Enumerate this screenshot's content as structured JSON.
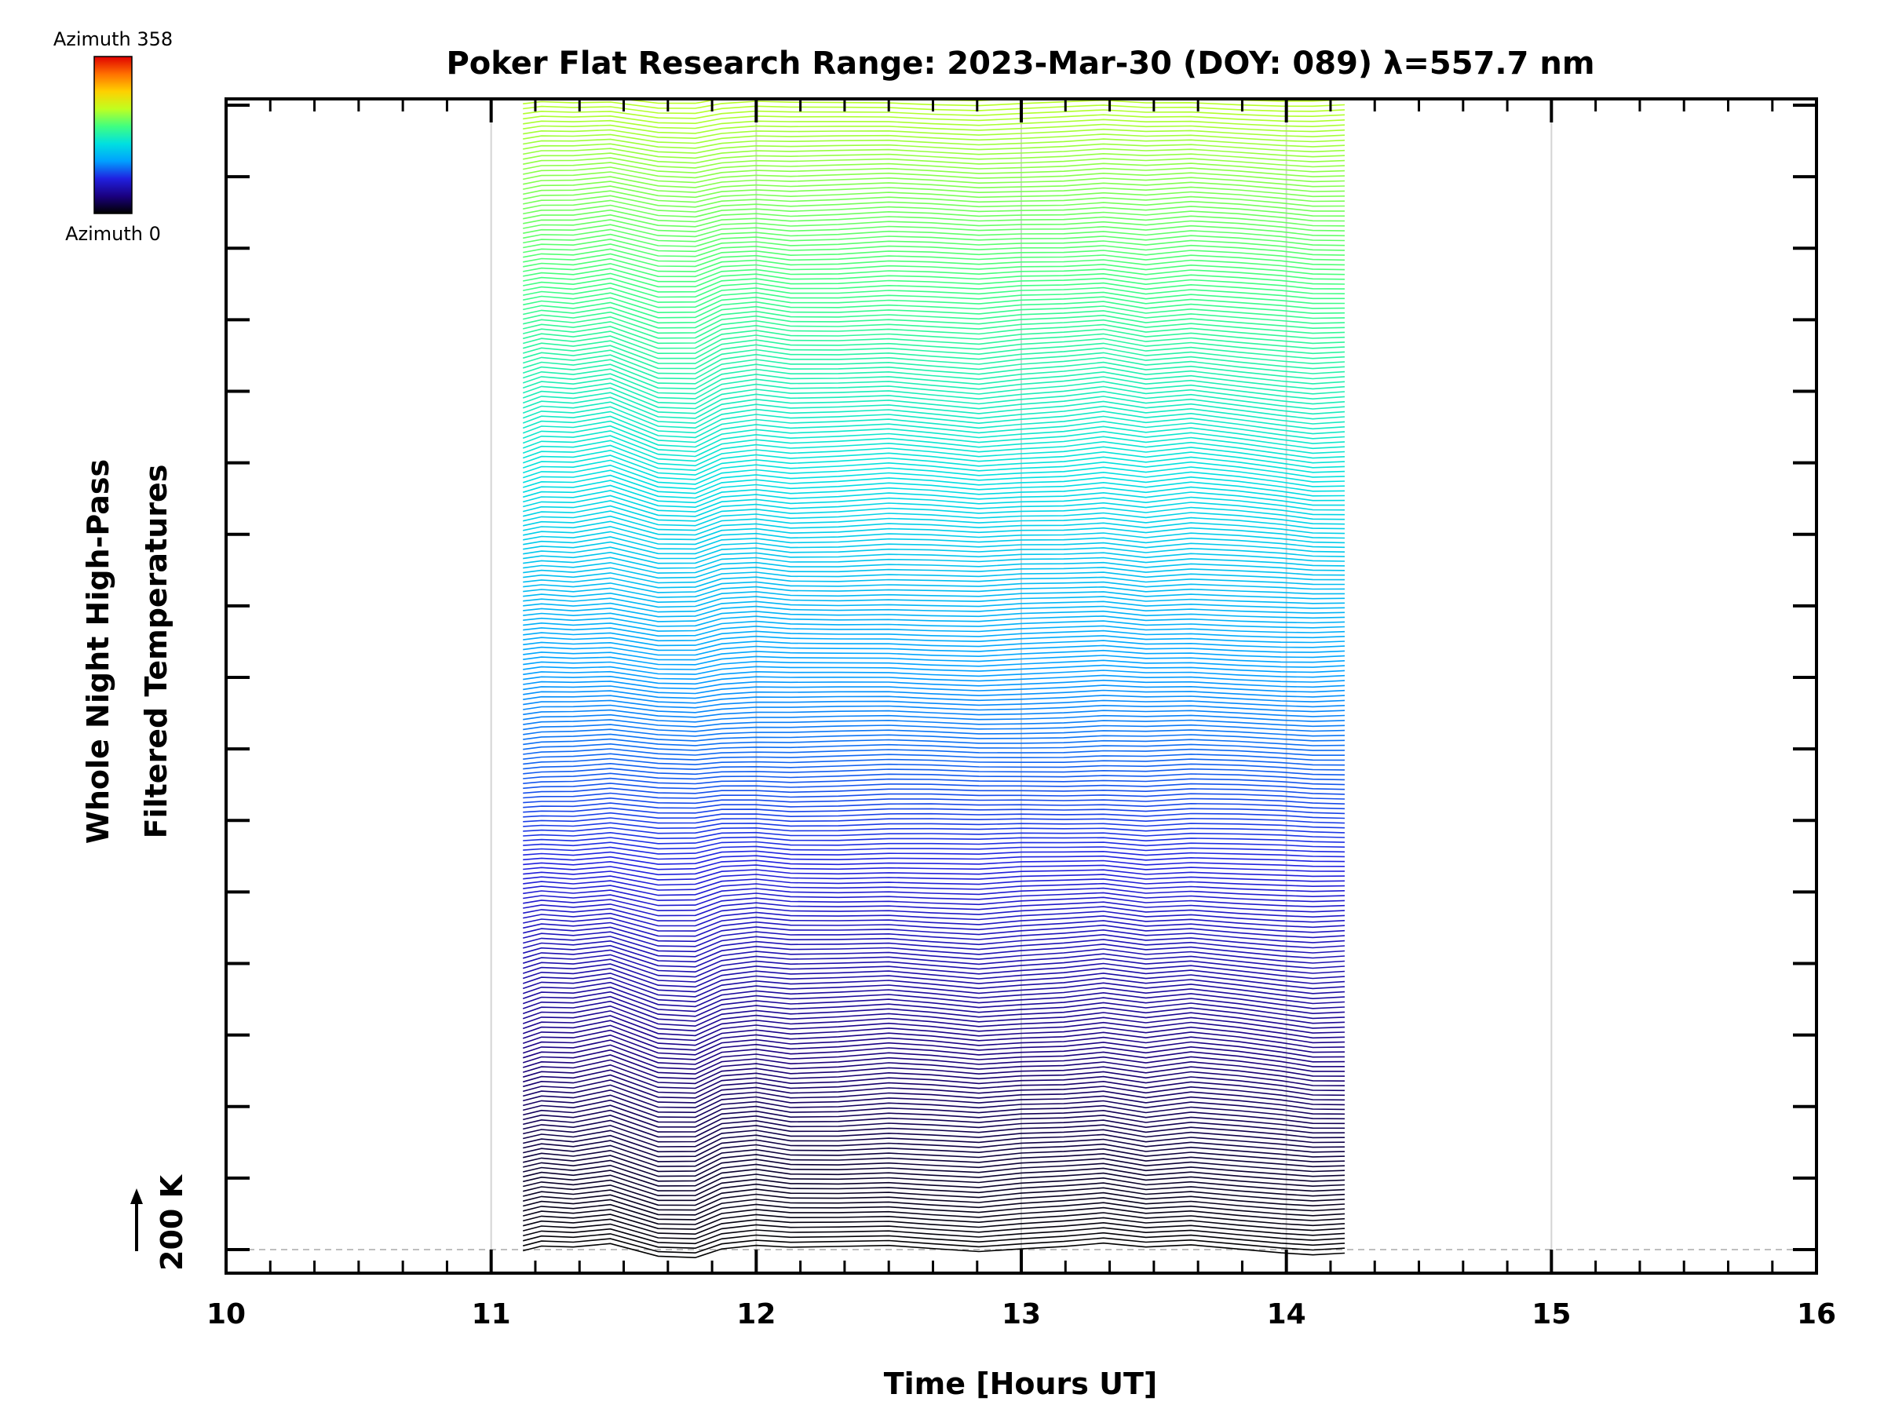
{
  "chart_data": {
    "type": "line",
    "title": "Poker Flat Research Range: 2023-Mar-30 (DOY: 089) λ=557.7 nm",
    "xlabel": "Time [Hours UT]",
    "ylabel_line1": "Whole Night High-Pass",
    "ylabel_line2": "Filtered Temperatures",
    "y_scale_marker": "200 K",
    "xlim": [
      10,
      16
    ],
    "x_ticks": [
      "10",
      "11",
      "12",
      "13",
      "14",
      "15",
      "16"
    ],
    "x_tick_values": [
      10,
      11,
      12,
      13,
      14,
      15,
      16
    ],
    "x_minor_step": 0.1667,
    "y_major_tick_count": 17,
    "vertical_gridlines_x": [
      11,
      12,
      13,
      14,
      15
    ],
    "data_start_hour": 11.12,
    "data_end_hour": 14.22,
    "times": [
      11.12,
      11.19,
      11.31,
      11.45,
      11.63,
      11.77,
      11.87,
      12.0,
      12.13,
      12.31,
      12.5,
      12.66,
      12.84,
      13.0,
      13.16,
      13.31,
      13.47,
      13.64,
      13.82,
      13.98,
      14.1,
      14.22
    ],
    "base_profile": [
      -4,
      8,
      4,
      18,
      -20,
      -22,
      6,
      14,
      4,
      6,
      12,
      6,
      -2,
      6,
      10,
      18,
      4,
      14,
      4,
      -6,
      -14,
      -12
    ],
    "series_count": 358,
    "series_spacing_K": 13.8,
    "trace_amplitude_scale": 0.85,
    "colorbar": {
      "top_label": "Azimuth 358",
      "bottom_label": "Azimuth 0",
      "min": 0,
      "max": 358,
      "colormap": "rainbow",
      "colors": [
        "#000000",
        "#1a0080",
        "#2020e0",
        "#00a0ff",
        "#00e0e0",
        "#40ff80",
        "#c0ff20",
        "#ffd000",
        "#ff7000",
        "#e00000"
      ]
    },
    "grid": "vertical only",
    "legend": "top-left colorbar"
  }
}
